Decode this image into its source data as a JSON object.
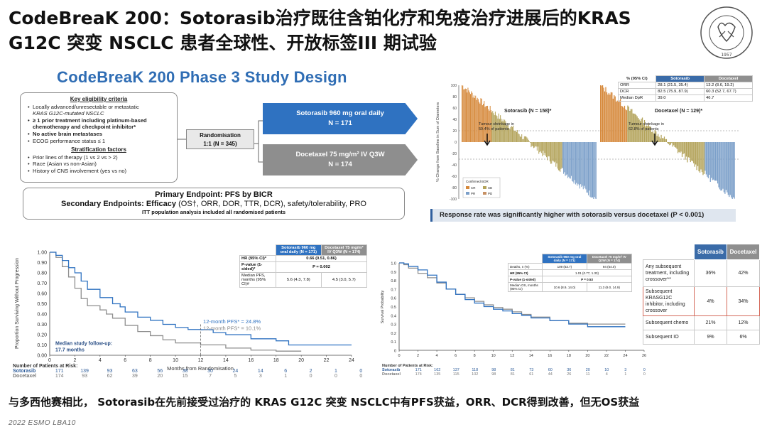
{
  "page": {
    "title": "CodeBreaK 200：Sotorasib治疗既往含铂化疗和免疫治疗进展后的KRAS G12C 突变 NSCLC 患者全球性、开放标签III 期试验",
    "conclusion": "与多西他赛相比， Sotorasib在先前接受过治疗的 KRAS G12C 突变 NSCLC中有PFS获益，ORR、DCR得到改善，但无OS获益",
    "footer": "2022 ESMO LBA10",
    "seal_text": "SHANGHAI CHEST HOSPITAL",
    "seal_year": "1957"
  },
  "design": {
    "title": "CodeBreaK 200 Phase 3 Study Design",
    "eligibility_header": "Key eligibility criteria",
    "eligibility": [
      "Locally advanced/unresectable or metastatic",
      "KRAS G12C-mutated NSCLC",
      "≥ 1 prior treatment including platinum-based",
      "chemotherapy and checkpoint inhibitor*",
      "No active brain metastases",
      "ECOG performance status ≤ 1"
    ],
    "strat_header": "Stratification factors",
    "strat": [
      "Prior lines of therapy (1 vs 2 vs > 2)",
      "Race (Asian vs non-Asian)",
      "History of CNS involvement (yes vs no)"
    ],
    "randomisation": "Randomisation",
    "randomisation_n": "1:1 (N = 345)",
    "arm_a": "Sotorasib 960 mg oral daily",
    "arm_a_n": "N = 171",
    "arm_b": "Docetaxel 75 mg/m² IV Q3W",
    "arm_b_n": "N = 174",
    "primary": "Primary Endpoint: PFS by BICR",
    "secondary_prefix": "Secondary Endpoints: Efficacy",
    "secondary_rest": "(OS†, ORR, DOR, TTR, DCR), safety/tolerability, PRO",
    "itt": "ITT population analysis included all randomised patients"
  },
  "waterfall": {
    "sotorasib_label": "Sotorasib (N = 158)*",
    "docetaxel_label": "Docetaxel (N = 129)*",
    "soto_shrink": "Tumour shrinkage in",
    "soto_shrink_pct": "59.4% of patients",
    "doc_shrink": "Tumour shrinkage in",
    "doc_shrink_pct": "62.8% of patients",
    "ylabel": "% Change from Baseline in Sum of Diameters",
    "legend_title": "Confirmed BOR",
    "legend": [
      "CR",
      "SD",
      "PR",
      "PD"
    ],
    "banner": "Response rate was significantly higher with sotorasib versus docetaxel (P < 0.001)",
    "table_head": [
      "% (95% CI)",
      "Sotorasib",
      "Docetaxel"
    ],
    "table_rows": [
      [
        "ORR",
        "28.1 (21.5, 35.4)",
        "13.2 (8.6, 19.2)"
      ],
      [
        "DCR",
        "82.5 (75.9, 87.9)",
        "60.3 (52.7, 67.7)"
      ],
      [
        "Median DpR",
        "39.0",
        "46.7"
      ]
    ],
    "yticks": [
      "100",
      "80",
      "60",
      "40",
      "20",
      "0",
      "-20",
      "-40",
      "-60",
      "-80",
      "-100"
    ]
  },
  "pfs": {
    "ylabel": "Proportion Surviving Without Progression",
    "xlabel": "Months from Randomisation",
    "yticks": [
      "1.00",
      "0.90",
      "0.80",
      "0.70",
      "0.60",
      "0.50",
      "0.40",
      "0.30",
      "0.20",
      "0.10",
      "0.00"
    ],
    "xticks": [
      "0",
      "2",
      "4",
      "6",
      "8",
      "10",
      "12",
      "14",
      "16",
      "18",
      "20",
      "22",
      "24"
    ],
    "label_a": "12-month PFS* = 24.8%",
    "label_b": "12-month PFS* = 10.1%",
    "followup": "Median study follow-up:",
    "followup_val": "17.7 months",
    "table_head_a": "Sotorasib 960 mg oral daily (N = 171)",
    "table_head_b": "Docetaxel 75 mg/m² IV Q3W (N = 174)",
    "rows": [
      [
        "HR (95% CI)*",
        "0.66 (0.51, 0.86)"
      ],
      [
        "P-value (1-sided)*",
        "P = 0.002"
      ],
      [
        "Median PFS, months (95% CI)#",
        "5.6 (4.3, 7.8)",
        "4.5 (3.0, 5.7)"
      ]
    ],
    "risk_header": "Number of Patients at Risk:",
    "risk_a_name": "Sotorasib",
    "risk_b_name": "Docetaxel",
    "risk_a": [
      "171",
      "139",
      "93",
      "63",
      "56",
      "38",
      "30",
      "24",
      "14",
      "6",
      "2",
      "1",
      "0"
    ],
    "risk_b": [
      "174",
      "93",
      "62",
      "39",
      "20",
      "15",
      "7",
      "5",
      "3",
      "1",
      "0",
      "0",
      "0"
    ]
  },
  "os": {
    "ylabel": "Survival Probability",
    "yticks": [
      "1.0",
      "0.9",
      "0.8",
      "0.7",
      "0.6",
      "0.5",
      "0.4",
      "0.3",
      "0.2",
      "0.1",
      "0"
    ],
    "xticks": [
      "0",
      "2",
      "4",
      "6",
      "8",
      "10",
      "12",
      "14",
      "16",
      "18",
      "20",
      "22",
      "24",
      "26"
    ],
    "table_head_a": "Sotorasib 960 mg oral daily (N = 171)",
    "table_head_b": "Docetaxel 75 mg/m² IV Q3W (N = 174)",
    "rows": [
      [
        "Deaths, n (%)",
        "109 (63.7)",
        "94 (54.0)"
      ],
      [
        "HR (95% CI)",
        "1.01 (0.77, 1.33)"
      ],
      [
        "P-value (1-sided)",
        "P = 0.53"
      ],
      [
        "Median OS, months (95% CI)",
        "10.6 (8.9, 14.0)",
        "11.3 (9.0, 14.9)"
      ]
    ],
    "risk_header": "Number of Patients at Risk:",
    "risk_a_name": "Sotorasib",
    "risk_b_name": "Docetaxel",
    "risk_a": [
      "171",
      "162",
      "137",
      "118",
      "98",
      "81",
      "73",
      "60",
      "36",
      "20",
      "10",
      "3",
      "0"
    ],
    "risk_b": [
      "174",
      "135",
      "115",
      "102",
      "98",
      "81",
      "61",
      "44",
      "26",
      "11",
      "4",
      "1",
      "0"
    ]
  },
  "subsequent": {
    "head": [
      "",
      "Sotorasib",
      "Docetaxel"
    ],
    "rows": [
      [
        "Any subsequent treatment, including crossover**",
        "36%",
        "42%"
      ],
      [
        "Subsequent KRASG12C inhibitor, including crossover",
        "4%",
        "34%"
      ],
      [
        "Subsequent chemo",
        "21%",
        "12%"
      ],
      [
        "Subsequent IO",
        "9%",
        "6%"
      ]
    ]
  },
  "colors": {
    "sotorasib": "#2f72c1",
    "docetaxel": "#8e8e8e",
    "bar_orange": "#d6893b",
    "bar_olive": "#b3a35a",
    "bar_blue": "#7b9fc9"
  }
}
